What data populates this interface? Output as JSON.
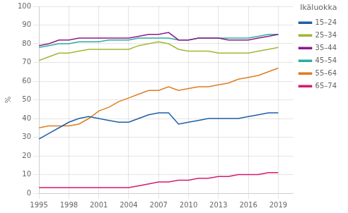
{
  "chart_data": {
    "type": "line",
    "x": [
      1995,
      1996,
      1997,
      1998,
      1999,
      2000,
      2001,
      2002,
      2003,
      2004,
      2005,
      2006,
      2007,
      2008,
      2009,
      2010,
      2011,
      2012,
      2013,
      2014,
      2015,
      2016,
      2017,
      2018,
      2019
    ],
    "series": [
      {
        "name": "15–24",
        "color": "#1f5fa6",
        "values": [
          29,
          32,
          35,
          38,
          40,
          41,
          40,
          39,
          38,
          38,
          40,
          42,
          43,
          43,
          37,
          38,
          39,
          40,
          40,
          40,
          40,
          41,
          42,
          43,
          43
        ]
      },
      {
        "name": "25–34",
        "color": "#9fb832",
        "values": [
          71,
          73,
          75,
          75,
          76,
          77,
          77,
          77,
          77,
          77,
          79,
          80,
          81,
          80,
          77,
          76,
          76,
          76,
          75,
          75,
          75,
          75,
          76,
          77,
          78
        ]
      },
      {
        "name": "35–44",
        "color": "#8b1a8b",
        "values": [
          79,
          80,
          82,
          82,
          83,
          83,
          83,
          83,
          83,
          83,
          84,
          85,
          85,
          86,
          82,
          82,
          83,
          83,
          83,
          82,
          82,
          82,
          83,
          84,
          85
        ]
      },
      {
        "name": "45–54",
        "color": "#2dada0",
        "values": [
          78,
          79,
          80,
          80,
          81,
          81,
          81,
          82,
          82,
          82,
          83,
          83,
          83,
          83,
          82,
          82,
          83,
          83,
          83,
          83,
          83,
          83,
          84,
          85,
          85
        ]
      },
      {
        "name": "55–64",
        "color": "#e07b20",
        "values": [
          35,
          36,
          36,
          36,
          37,
          40,
          44,
          46,
          49,
          51,
          53,
          55,
          55,
          57,
          55,
          56,
          57,
          57,
          58,
          59,
          61,
          62,
          63,
          65,
          67
        ]
      },
      {
        "name": "65–74",
        "color": "#d61a6e",
        "values": [
          3,
          3,
          3,
          3,
          3,
          3,
          3,
          3,
          3,
          3,
          4,
          5,
          6,
          6,
          7,
          7,
          8,
          8,
          9,
          9,
          10,
          10,
          10,
          11,
          11
        ]
      }
    ],
    "legend_title": "Ikäluokka",
    "ylabel": "%",
    "xlim": [
      1995,
      2020.5
    ],
    "xticks": [
      1995,
      1998,
      2001,
      2004,
      2007,
      2010,
      2013,
      2016,
      2019
    ],
    "ylim": [
      0,
      100
    ],
    "yticks": [
      0,
      10,
      20,
      30,
      40,
      50,
      60,
      70,
      80,
      90,
      100
    ],
    "grid": true,
    "legend": "right"
  }
}
